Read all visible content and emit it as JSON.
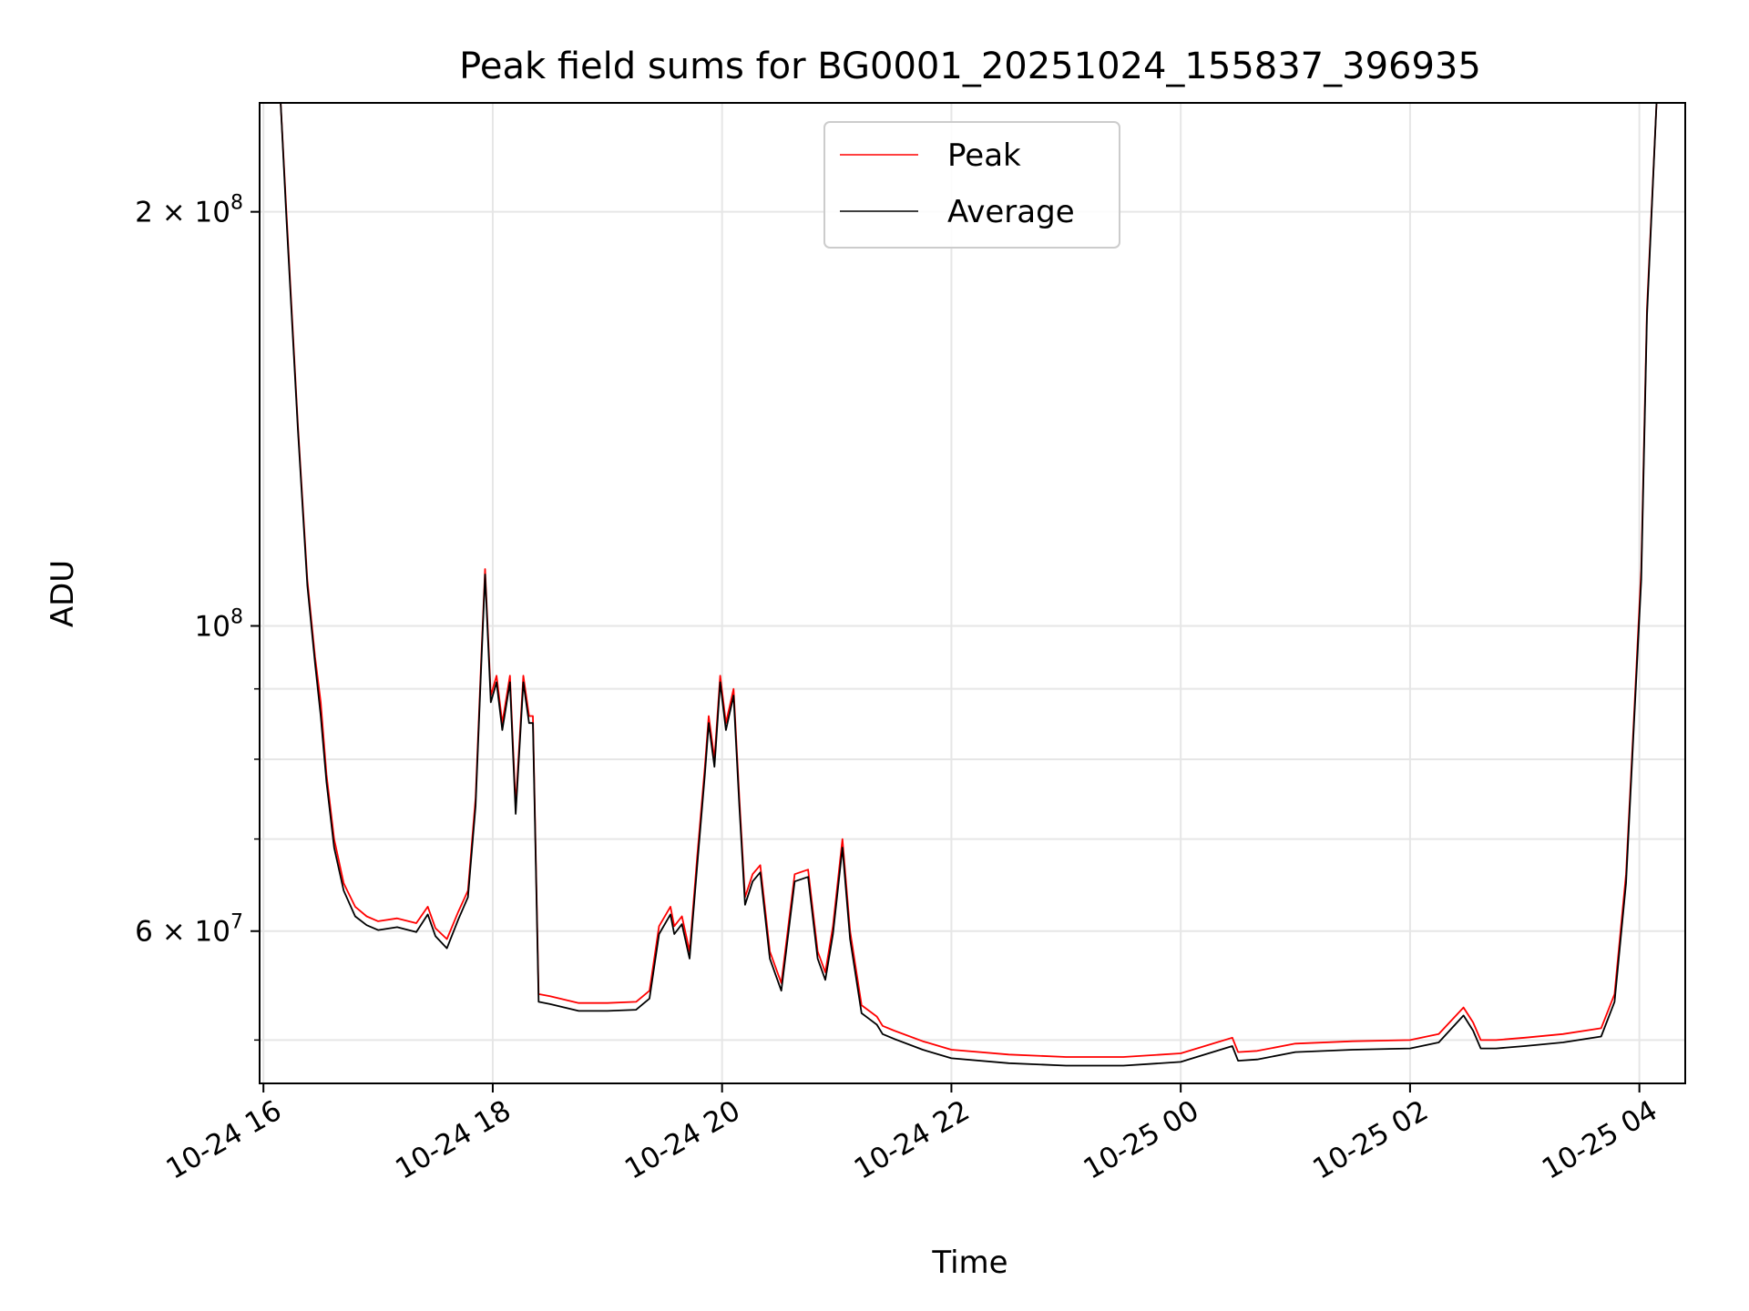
{
  "chart_data": {
    "type": "line",
    "title": "Peak field sums for BG0001_20251024_155837_396935",
    "xlabel": "Time",
    "ylabel": "ADU",
    "y_scale": "log",
    "grid": true,
    "legend_position": "top-center",
    "x_range": [
      "2025-10-24 15:58",
      "2025-10-25 04:24"
    ],
    "y_range": [
      46500000,
      240000000
    ],
    "x_ticks": [
      {
        "value": "2025-10-24 16:00",
        "label": "10-24 16"
      },
      {
        "value": "2025-10-24 18:00",
        "label": "10-24 18"
      },
      {
        "value": "2025-10-24 20:00",
        "label": "10-24 20"
      },
      {
        "value": "2025-10-24 22:00",
        "label": "10-24 22"
      },
      {
        "value": "2025-10-25 00:00",
        "label": "10-25 00"
      },
      {
        "value": "2025-10-25 02:00",
        "label": "10-25 02"
      },
      {
        "value": "2025-10-25 04:00",
        "label": "10-25 04"
      }
    ],
    "y_ticks": [
      {
        "value": 200000000,
        "base": "2",
        "exp": "8"
      },
      {
        "value": 100000000,
        "base": "",
        "exp": "8"
      },
      {
        "value": 60000000,
        "base": "6",
        "exp": "7"
      }
    ],
    "y_minor_ticks": [
      50000000,
      70000000,
      80000000,
      90000000
    ],
    "series": [
      {
        "name": "Peak",
        "color": "#ff0000",
        "x": [
          "2025-10-24 16:09",
          "2025-10-24 16:12",
          "2025-10-24 16:18",
          "2025-10-24 16:23",
          "2025-10-24 16:27",
          "2025-10-24 16:30",
          "2025-10-24 16:33",
          "2025-10-24 16:37",
          "2025-10-24 16:42",
          "2025-10-24 16:48",
          "2025-10-24 16:54",
          "2025-10-24 17:00",
          "2025-10-24 17:10",
          "2025-10-24 17:20",
          "2025-10-24 17:26",
          "2025-10-24 17:30",
          "2025-10-24 17:36",
          "2025-10-24 17:42",
          "2025-10-24 17:47",
          "2025-10-24 17:51",
          "2025-10-24 17:54",
          "2025-10-24 17:56",
          "2025-10-24 17:59",
          "2025-10-24 18:02",
          "2025-10-24 18:05",
          "2025-10-24 18:09",
          "2025-10-24 18:12",
          "2025-10-24 18:16",
          "2025-10-24 18:19",
          "2025-10-24 18:21",
          "2025-10-24 18:24",
          "2025-10-24 18:30",
          "2025-10-24 18:45",
          "2025-10-24 19:00",
          "2025-10-24 19:15",
          "2025-10-24 19:22",
          "2025-10-24 19:27",
          "2025-10-24 19:33",
          "2025-10-24 19:35",
          "2025-10-24 19:39",
          "2025-10-24 19:43",
          "2025-10-24 19:47",
          "2025-10-24 19:51",
          "2025-10-24 19:53",
          "2025-10-24 19:56",
          "2025-10-24 19:59",
          "2025-10-24 20:02",
          "2025-10-24 20:06",
          "2025-10-24 20:09",
          "2025-10-24 20:12",
          "2025-10-24 20:16",
          "2025-10-24 20:20",
          "2025-10-24 20:25",
          "2025-10-24 20:31",
          "2025-10-24 20:38",
          "2025-10-24 20:45",
          "2025-10-24 20:50",
          "2025-10-24 20:54",
          "2025-10-24 20:58",
          "2025-10-24 21:03",
          "2025-10-24 21:07",
          "2025-10-24 21:13",
          "2025-10-24 21:17",
          "2025-10-24 21:21",
          "2025-10-24 21:24",
          "2025-10-24 21:30",
          "2025-10-24 21:45",
          "2025-10-24 22:00",
          "2025-10-24 22:30",
          "2025-10-24 23:00",
          "2025-10-24 23:30",
          "2025-10-25 00:00",
          "2025-10-25 00:27",
          "2025-10-25 00:30",
          "2025-10-25 00:40",
          "2025-10-25 01:00",
          "2025-10-25 01:30",
          "2025-10-25 02:00",
          "2025-10-25 02:15",
          "2025-10-25 02:28",
          "2025-10-25 02:33",
          "2025-10-25 02:37",
          "2025-10-25 02:45",
          "2025-10-25 03:00",
          "2025-10-25 03:20",
          "2025-10-25 03:40",
          "2025-10-25 03:47",
          "2025-10-25 03:53",
          "2025-10-25 03:57",
          "2025-10-25 04:01",
          "2025-10-25 04:04",
          "2025-10-25 04:09"
        ],
        "y": [
          240000000,
          200000000,
          140000000,
          108000000,
          95000000,
          88000000,
          78000000,
          70000000,
          65000000,
          62500000,
          61500000,
          61000000,
          61300000,
          60800000,
          62500000,
          60300000,
          59200000,
          62000000,
          64200000,
          75000000,
          95000000,
          110000000,
          89000000,
          92000000,
          85000000,
          92000000,
          74000000,
          92000000,
          86000000,
          86000000,
          54000000,
          53800000,
          53200000,
          53200000,
          53300000,
          54300000,
          60500000,
          62500000,
          60500000,
          61500000,
          58000000,
          68000000,
          79000000,
          86000000,
          80000000,
          92000000,
          85000000,
          90000000,
          75000000,
          63500000,
          66000000,
          67000000,
          58000000,
          55000000,
          66000000,
          66500000,
          58000000,
          56000000,
          60500000,
          70000000,
          60000000,
          53000000,
          52500000,
          52000000,
          51200000,
          50800000,
          49900000,
          49200000,
          48800000,
          48600000,
          48600000,
          48900000,
          50200000,
          49000000,
          49100000,
          49700000,
          49900000,
          50000000,
          50500000,
          52800000,
          51500000,
          50000000,
          50000000,
          50200000,
          50500000,
          51000000,
          54000000,
          66000000,
          85000000,
          110000000,
          170000000,
          240000000
        ]
      },
      {
        "name": "Average",
        "color": "#000000",
        "x": [
          "2025-10-24 16:09",
          "2025-10-24 16:12",
          "2025-10-24 16:18",
          "2025-10-24 16:23",
          "2025-10-24 16:27",
          "2025-10-24 16:30",
          "2025-10-24 16:33",
          "2025-10-24 16:37",
          "2025-10-24 16:42",
          "2025-10-24 16:48",
          "2025-10-24 16:54",
          "2025-10-24 17:00",
          "2025-10-24 17:10",
          "2025-10-24 17:20",
          "2025-10-24 17:26",
          "2025-10-24 17:30",
          "2025-10-24 17:36",
          "2025-10-24 17:42",
          "2025-10-24 17:47",
          "2025-10-24 17:51",
          "2025-10-24 17:54",
          "2025-10-24 17:56",
          "2025-10-24 17:59",
          "2025-10-24 18:02",
          "2025-10-24 18:05",
          "2025-10-24 18:09",
          "2025-10-24 18:12",
          "2025-10-24 18:16",
          "2025-10-24 18:19",
          "2025-10-24 18:21",
          "2025-10-24 18:24",
          "2025-10-24 18:30",
          "2025-10-24 18:45",
          "2025-10-24 19:00",
          "2025-10-24 19:15",
          "2025-10-24 19:22",
          "2025-10-24 19:27",
          "2025-10-24 19:33",
          "2025-10-24 19:35",
          "2025-10-24 19:39",
          "2025-10-24 19:43",
          "2025-10-24 19:47",
          "2025-10-24 19:51",
          "2025-10-24 19:53",
          "2025-10-24 19:56",
          "2025-10-24 19:59",
          "2025-10-24 20:02",
          "2025-10-24 20:06",
          "2025-10-24 20:09",
          "2025-10-24 20:12",
          "2025-10-24 20:16",
          "2025-10-24 20:20",
          "2025-10-24 20:25",
          "2025-10-24 20:31",
          "2025-10-24 20:38",
          "2025-10-24 20:45",
          "2025-10-24 20:50",
          "2025-10-24 20:54",
          "2025-10-24 20:58",
          "2025-10-24 21:03",
          "2025-10-24 21:07",
          "2025-10-24 21:13",
          "2025-10-24 21:17",
          "2025-10-24 21:21",
          "2025-10-24 21:24",
          "2025-10-24 21:30",
          "2025-10-24 21:45",
          "2025-10-24 22:00",
          "2025-10-24 22:30",
          "2025-10-24 23:00",
          "2025-10-24 23:30",
          "2025-10-25 00:00",
          "2025-10-25 00:27",
          "2025-10-25 00:30",
          "2025-10-25 00:40",
          "2025-10-25 01:00",
          "2025-10-25 01:30",
          "2025-10-25 02:00",
          "2025-10-25 02:15",
          "2025-10-25 02:28",
          "2025-10-25 02:33",
          "2025-10-25 02:37",
          "2025-10-25 02:45",
          "2025-10-25 03:00",
          "2025-10-25 03:20",
          "2025-10-25 03:40",
          "2025-10-25 03:47",
          "2025-10-25 03:53",
          "2025-10-25 03:57",
          "2025-10-25 04:01",
          "2025-10-25 04:04",
          "2025-10-25 04:09"
        ],
        "y": [
          240000000,
          198000000,
          139000000,
          107000000,
          94000000,
          86000000,
          77000000,
          69000000,
          64200000,
          61500000,
          60600000,
          60100000,
          60400000,
          59900000,
          61700000,
          59500000,
          58300000,
          61200000,
          63500000,
          74000000,
          94000000,
          109000000,
          88000000,
          91000000,
          84000000,
          91000000,
          73000000,
          91000000,
          85000000,
          85000000,
          53300000,
          53100000,
          52500000,
          52500000,
          52600000,
          53600000,
          59700000,
          61700000,
          59700000,
          60700000,
          57300000,
          67000000,
          78000000,
          85000000,
          79000000,
          91000000,
          84000000,
          89000000,
          74000000,
          62700000,
          65200000,
          66200000,
          57300000,
          54300000,
          65200000,
          65700000,
          57300000,
          55300000,
          59700000,
          69000000,
          59200000,
          52300000,
          51800000,
          51300000,
          50500000,
          50100000,
          49200000,
          48500000,
          48100000,
          47900000,
          47900000,
          48200000,
          49500000,
          48300000,
          48400000,
          49000000,
          49200000,
          49300000,
          49800000,
          52100000,
          50800000,
          49300000,
          49300000,
          49500000,
          49800000,
          50300000,
          53300000,
          65000000,
          84000000,
          108000000,
          168000000,
          240000000
        ]
      }
    ]
  }
}
